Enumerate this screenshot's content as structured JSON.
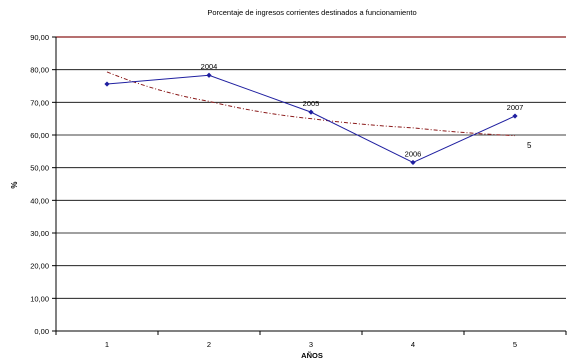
{
  "chart_data": {
    "type": "line",
    "title": "Porcentaje de ingresos corrientes destinados a funcionamiento",
    "xlabel": "AÑOS",
    "ylabel": "%",
    "categories": [
      "1",
      "2",
      "3",
      "4",
      "5"
    ],
    "ylim": [
      0,
      90
    ],
    "yticks": [
      "0,00",
      "10,00",
      "20,00",
      "30,00",
      "40,00",
      "50,00",
      "60,00",
      "70,00",
      "80,00",
      "90,00"
    ],
    "grid": true,
    "series": [
      {
        "values": [
          75.6,
          78.3,
          67.0,
          51.6,
          65.8
        ],
        "point_labels": [
          "",
          "2004",
          "2005",
          "2006",
          "2007"
        ],
        "color": "#1f1fa0"
      }
    ],
    "trendline": {
      "type": "logarithmic",
      "values": [
        79.3,
        70.3,
        65.0,
        62.2,
        59.8
      ],
      "color": "#8b1a1a"
    },
    "annotations": [
      "5"
    ],
    "colors": {
      "top_gridline": "#8b1a1a",
      "gridline": "#000000"
    }
  }
}
